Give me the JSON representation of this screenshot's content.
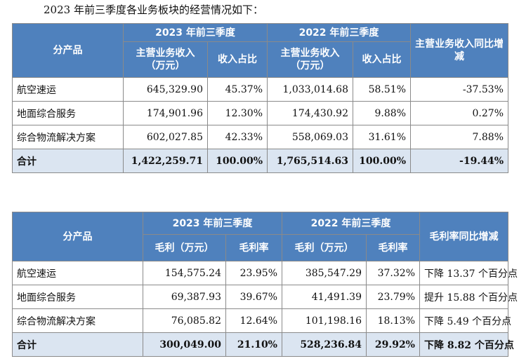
{
  "intro": "2023 年前三季度各业务板块的经营情况如下：",
  "table1": {
    "headers": {
      "product": "分产品",
      "period_2023": "2023 年前三季度",
      "period_2022": "2022 年前三季度",
      "revenue": "主营业务收入（万元）",
      "share": "收入占比",
      "yoy": "主营业务收入同比增减"
    },
    "rows": [
      {
        "name": "航空速运",
        "rev2023": "645,329.90",
        "share2023": "45.37%",
        "rev2022": "1,033,014.68",
        "share2022": "58.51%",
        "yoy": "-37.53%"
      },
      {
        "name": "地面综合服务",
        "rev2023": "174,901.96",
        "share2023": "12.30%",
        "rev2022": "174,430.92",
        "share2022": "9.88%",
        "yoy": "0.27%"
      },
      {
        "name": "综合物流解决方案",
        "rev2023": "602,027.85",
        "share2023": "42.33%",
        "rev2022": "558,069.03",
        "share2022": "31.61%",
        "yoy": "7.88%"
      }
    ],
    "total": {
      "name": "合计",
      "rev2023": "1,422,259.71",
      "share2023": "100.00%",
      "rev2022": "1,765,514.63",
      "share2022": "100.00%",
      "yoy": "-19.44%"
    }
  },
  "table2": {
    "headers": {
      "product": "分产品",
      "period_2023": "2023 年前三季度",
      "period_2022": "2022 年前三季度",
      "gross_profit": "毛利（万元）",
      "margin": "毛利率",
      "margin_change": "毛利率同比增减"
    },
    "rows": [
      {
        "name": "航空速运",
        "gp2023": "154,575.24",
        "margin2023": "23.95%",
        "gp2022": "385,547.29",
        "margin2022": "37.32%",
        "change": "下降 13.37 个百分点"
      },
      {
        "name": "地面综合服务",
        "gp2023": "69,387.93",
        "margin2023": "39.67%",
        "gp2022": "41,491.39",
        "margin2022": "23.79%",
        "change": "提升 15.88 个百分点"
      },
      {
        "name": "综合物流解决方案",
        "gp2023": "76,085.82",
        "margin2023": "12.64%",
        "gp2022": "101,198.16",
        "margin2022": "18.13%",
        "change": "下降 5.49 个百分点"
      }
    ],
    "total": {
      "name": "合计",
      "gp2023": "300,049.00",
      "margin2023": "21.10%",
      "gp2022": "528,236.84",
      "margin2022": "29.92%",
      "change": "下降 8.82 个百分点"
    }
  }
}
